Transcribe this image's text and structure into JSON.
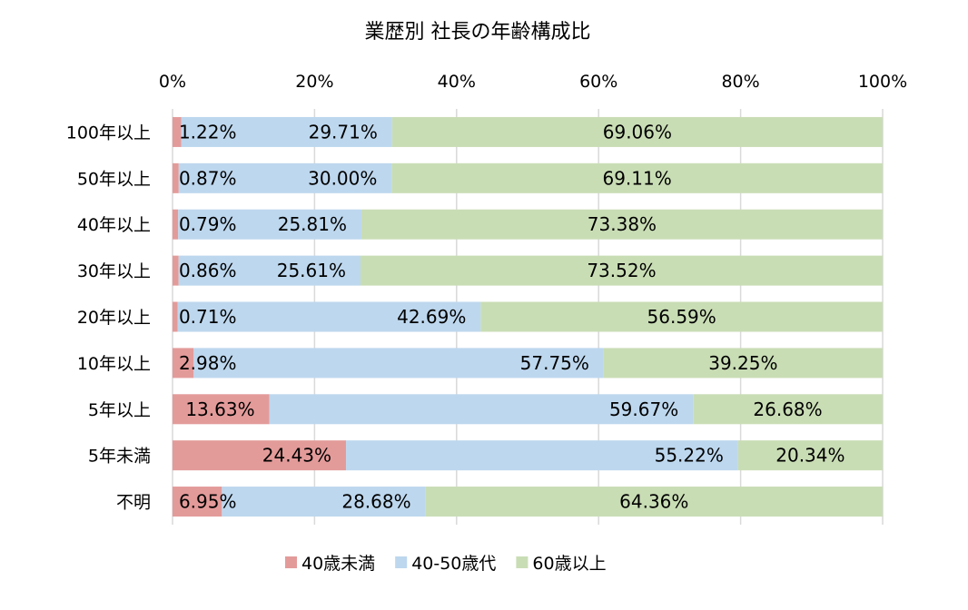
{
  "chart_data": {
    "type": "bar",
    "orientation": "horizontal",
    "stacked": "percent",
    "title": "業歴別 社長の年齢構成比",
    "categories": [
      "100年以上",
      "50年以上",
      "40年以上",
      "30年以上",
      "20年以上",
      "10年以上",
      "5年以上",
      "5年未満",
      "不明"
    ],
    "series": [
      {
        "name": "40歳未満",
        "color": "#e39b9a",
        "values": [
          1.22,
          0.87,
          0.79,
          0.86,
          0.71,
          2.98,
          13.63,
          24.43,
          6.95
        ]
      },
      {
        "name": "40-50歳代",
        "color": "#bdd7ee",
        "values": [
          29.71,
          30.0,
          25.81,
          25.61,
          42.69,
          57.75,
          59.67,
          55.22,
          28.68
        ]
      },
      {
        "name": "60歳以上",
        "color": "#c9ddb5",
        "values": [
          69.06,
          69.11,
          73.38,
          73.52,
          56.59,
          39.25,
          26.68,
          20.34,
          64.36
        ]
      }
    ],
    "xlim": [
      0,
      100
    ],
    "xticks": [
      "0%",
      "20%",
      "40%",
      "60%",
      "80%",
      "100%"
    ],
    "grid": true,
    "legend": "bottom"
  }
}
